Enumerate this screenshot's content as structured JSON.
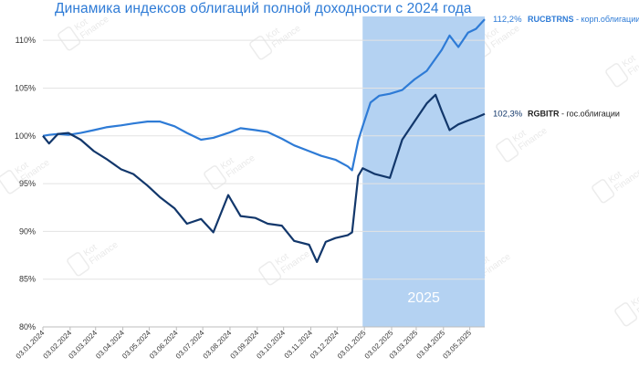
{
  "chart_data": {
    "type": "line",
    "title": "Динамика индексов облигаций полной доходности с 2024 года",
    "ylim": [
      80,
      112.5
    ],
    "y_ticks": [
      "80%",
      "85%",
      "90%",
      "95%",
      "100%",
      "105%",
      "110%"
    ],
    "x_range": [
      "2024-01-03",
      "2025-05-20"
    ],
    "x_ticks": [
      "03.01.2024",
      "03.02.2024",
      "03.03.2024",
      "03.04.2024",
      "03.05.2024",
      "03.06.2024",
      "03.07.2024",
      "03.08.2024",
      "03.09.2024",
      "03.10.2024",
      "03.11.2024",
      "03.12.2024",
      "03.01.2025",
      "03.02.2025",
      "03.03.2025",
      "03.04.2025",
      "03.05.2025"
    ],
    "shaded_region": {
      "from": "2025-01-01",
      "to": "2025-05-20",
      "label": "2025",
      "color": "#b4d2f2"
    },
    "grid": true,
    "watermark": "Kot Finance",
    "series": [
      {
        "name": "RUCBTRNS",
        "label": "RUCBTRNS - корп.облигации",
        "end_value_label": "112,2%",
        "color": "#2e7bd6",
        "points": [
          [
            "2024-01-03",
            100.0
          ],
          [
            "2024-01-10",
            100.1
          ],
          [
            "2024-01-20",
            100.2
          ],
          [
            "2024-02-01",
            100.1
          ],
          [
            "2024-02-15",
            100.3
          ],
          [
            "2024-03-01",
            100.6
          ],
          [
            "2024-03-15",
            100.9
          ],
          [
            "2024-04-01",
            101.1
          ],
          [
            "2024-04-15",
            101.3
          ],
          [
            "2024-05-01",
            101.5
          ],
          [
            "2024-05-15",
            101.5
          ],
          [
            "2024-06-01",
            101.0
          ],
          [
            "2024-06-15",
            100.3
          ],
          [
            "2024-07-01",
            99.6
          ],
          [
            "2024-07-15",
            99.8
          ],
          [
            "2024-08-01",
            100.3
          ],
          [
            "2024-08-15",
            100.8
          ],
          [
            "2024-09-01",
            100.6
          ],
          [
            "2024-09-15",
            100.4
          ],
          [
            "2024-10-01",
            99.7
          ],
          [
            "2024-10-15",
            99.0
          ],
          [
            "2024-11-01",
            98.4
          ],
          [
            "2024-11-15",
            97.9
          ],
          [
            "2024-12-01",
            97.5
          ],
          [
            "2024-12-15",
            96.8
          ],
          [
            "2024-12-20",
            96.4
          ],
          [
            "2024-12-27",
            99.5
          ],
          [
            "2025-01-01",
            101.0
          ],
          [
            "2025-01-10",
            103.5
          ],
          [
            "2025-01-20",
            104.2
          ],
          [
            "2025-02-01",
            104.4
          ],
          [
            "2025-02-15",
            104.8
          ],
          [
            "2025-03-01",
            105.9
          ],
          [
            "2025-03-15",
            106.8
          ],
          [
            "2025-04-01",
            109.0
          ],
          [
            "2025-04-10",
            110.5
          ],
          [
            "2025-04-20",
            109.3
          ],
          [
            "2025-05-01",
            110.8
          ],
          [
            "2025-05-10",
            111.2
          ],
          [
            "2025-05-20",
            112.2
          ]
        ]
      },
      {
        "name": "RGBITR",
        "label": "RGBITR - гос.облигации",
        "end_value_label": "102,3%",
        "color": "#12376b",
        "points": [
          [
            "2024-01-03",
            100.0
          ],
          [
            "2024-01-10",
            99.2
          ],
          [
            "2024-01-20",
            100.2
          ],
          [
            "2024-02-01",
            100.3
          ],
          [
            "2024-02-15",
            99.6
          ],
          [
            "2024-03-01",
            98.4
          ],
          [
            "2024-03-15",
            97.6
          ],
          [
            "2024-04-01",
            96.5
          ],
          [
            "2024-04-15",
            96.0
          ],
          [
            "2024-05-01",
            94.8
          ],
          [
            "2024-05-15",
            93.6
          ],
          [
            "2024-06-01",
            92.4
          ],
          [
            "2024-06-15",
            90.8
          ],
          [
            "2024-07-01",
            91.3
          ],
          [
            "2024-07-15",
            89.9
          ],
          [
            "2024-08-01",
            93.8
          ],
          [
            "2024-08-15",
            91.6
          ],
          [
            "2024-09-01",
            91.4
          ],
          [
            "2024-09-15",
            90.8
          ],
          [
            "2024-10-01",
            90.6
          ],
          [
            "2024-10-15",
            89.0
          ],
          [
            "2024-11-01",
            88.6
          ],
          [
            "2024-11-10",
            86.8
          ],
          [
            "2024-11-20",
            88.9
          ],
          [
            "2024-12-01",
            89.3
          ],
          [
            "2024-12-15",
            89.6
          ],
          [
            "2024-12-20",
            89.9
          ],
          [
            "2024-12-27",
            95.8
          ],
          [
            "2025-01-01",
            96.6
          ],
          [
            "2025-01-15",
            96.0
          ],
          [
            "2025-02-01",
            95.6
          ],
          [
            "2025-02-15",
            99.6
          ],
          [
            "2025-03-01",
            101.5
          ],
          [
            "2025-03-15",
            103.4
          ],
          [
            "2025-03-25",
            104.3
          ],
          [
            "2025-04-01",
            102.6
          ],
          [
            "2025-04-10",
            100.6
          ],
          [
            "2025-04-20",
            101.2
          ],
          [
            "2025-05-01",
            101.6
          ],
          [
            "2025-05-10",
            101.9
          ],
          [
            "2025-05-20",
            102.3
          ]
        ]
      }
    ]
  }
}
